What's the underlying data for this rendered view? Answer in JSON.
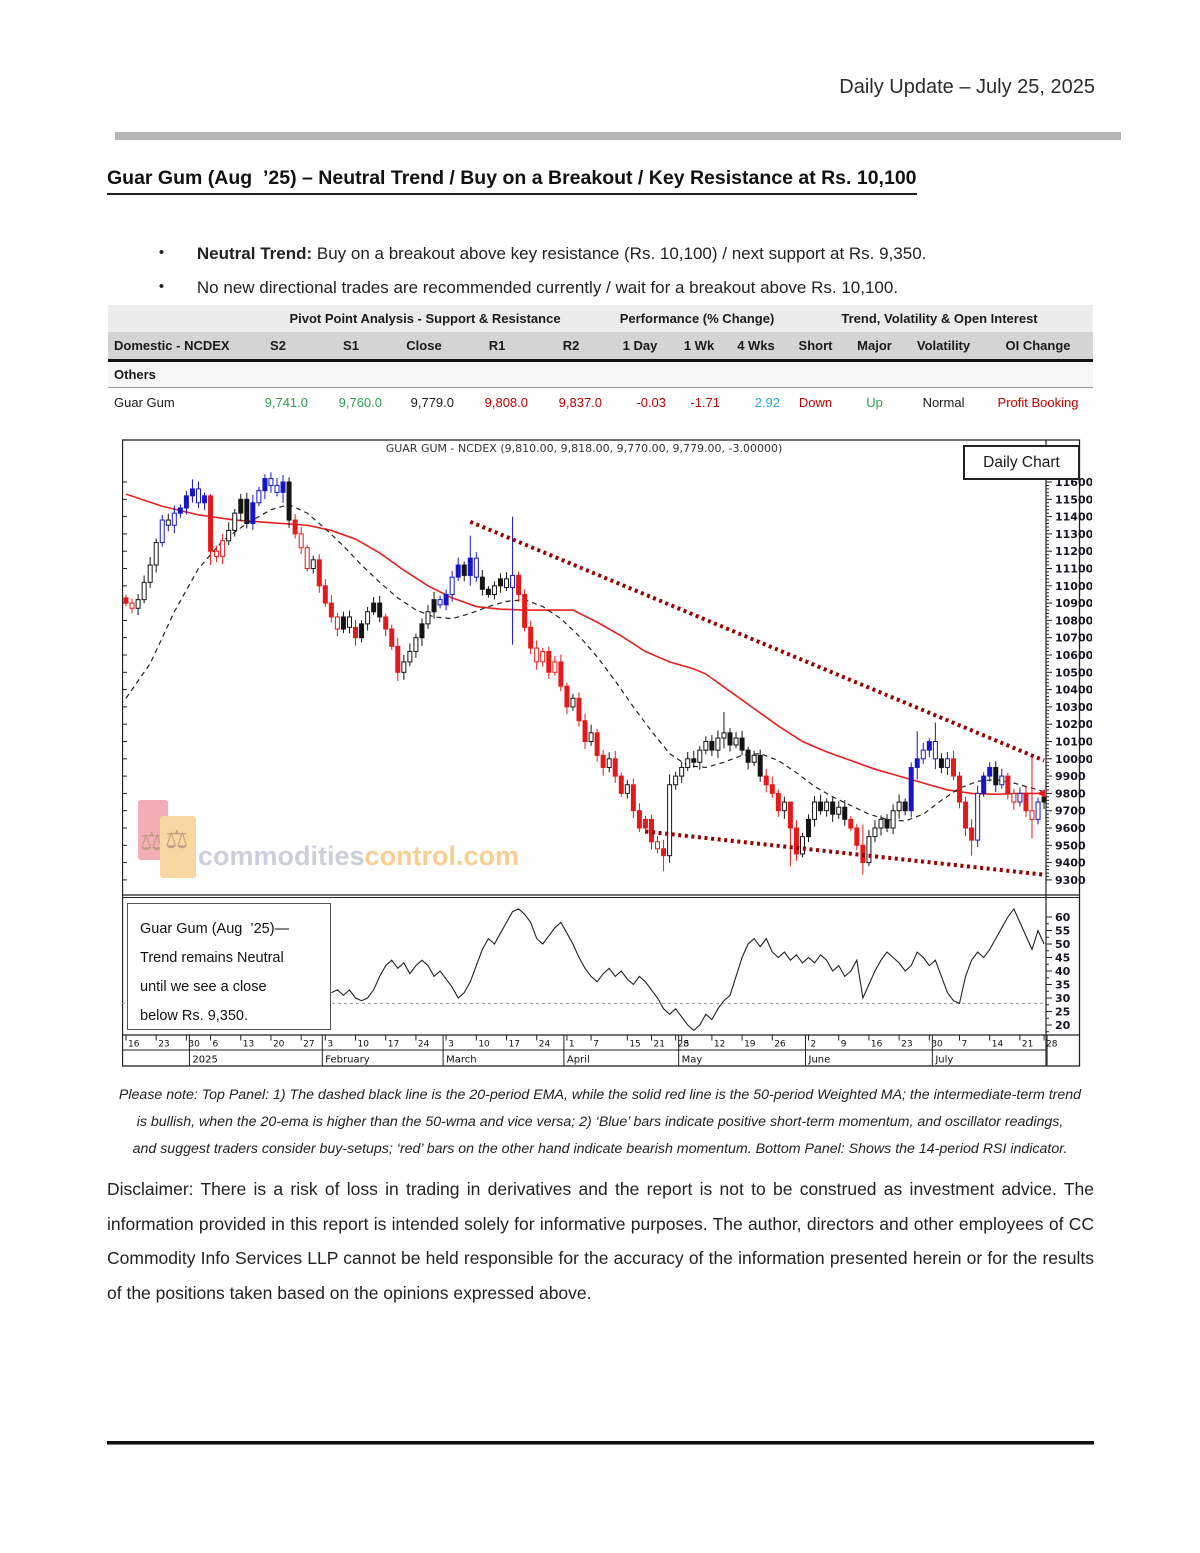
{
  "header": {
    "date_label": "Daily Update – July 25, 2025"
  },
  "heading": "Guar Gum (Aug  ’25) – Neutral Trend / Buy on a Breakout / Key Resistance at Rs. 10,100",
  "bullets": [
    {
      "marker": "•",
      "bold": "Neutral Trend:",
      "rest": " Buy on a breakout above key resistance (Rs. 10,100) / next support at Rs. 9,350."
    },
    {
      "marker": "•",
      "bold": "",
      "rest": "No new directional trades are recommended currently / wait for a breakout above Rs. 10,100."
    }
  ],
  "table": {
    "group_headers": [
      "",
      "Pivot Point Analysis - Support & Resistance",
      "Performance (% Change)",
      "Trend, Volatility & Open Interest"
    ],
    "columns": [
      "Domestic - NCDEX",
      "S2",
      "S1",
      "Close",
      "R1",
      "R2",
      "1 Day",
      "1 Wk",
      "4 Wks",
      "Short",
      "Major",
      "Volatility",
      "OI Change"
    ],
    "section_label": "Others",
    "row": {
      "name": "Guar Gum",
      "values": [
        "9,741.0",
        "9,760.0",
        "9,779.0",
        "9,808.0",
        "9,837.0",
        "-0.03",
        "-1.71",
        "2.92",
        "Down",
        "Up",
        "Normal",
        "Profit Booking"
      ],
      "value_colors": [
        "green",
        "green",
        "black",
        "red",
        "red",
        "red",
        "red",
        "cyan",
        "red",
        "green",
        "black",
        "red"
      ]
    },
    "palette": {
      "green": "#2e9e50",
      "red": "#c00000",
      "cyan": "#2aa7df",
      "black": "#1a1a1a"
    }
  },
  "chart": {
    "corner_label": "Daily Chart",
    "annotation_lines": [
      "Guar Gum (Aug  ’25)—",
      "Trend remains Neutral",
      "until we see a close",
      "below Rs. 9,350."
    ],
    "watermark": {
      "gray": "commodities",
      "orange": "control.com",
      "scale_icon": "⚖"
    }
  },
  "chart_data": {
    "type": "candlestick",
    "title": "GUAR GUM - NCDEX (9,810.00, 9,818.00, 9,770.00, 9,779.00, -3.00000)",
    "ylabel_min": 9300,
    "ylabel_max": 11600,
    "ylabel_step": 100,
    "open0": 10930,
    "closes": [
      10900,
      10870,
      10920,
      11020,
      11120,
      11250,
      11380,
      11350,
      11420,
      11450,
      11520,
      11560,
      11480,
      11520,
      11200,
      11170,
      11260,
      11320,
      11420,
      11500,
      11360,
      11480,
      11550,
      11620,
      11580,
      11540,
      11600,
      11380,
      11300,
      11220,
      11100,
      11150,
      11000,
      10900,
      10820,
      10750,
      10820,
      10760,
      10700,
      10780,
      10850,
      10900,
      10820,
      10750,
      10650,
      10500,
      10560,
      10620,
      10700,
      10780,
      10850,
      10920,
      10890,
      10950,
      11050,
      11120,
      11060,
      11160,
      11050,
      10980,
      10950,
      11000,
      11040,
      10990,
      11060,
      10950,
      10760,
      10640,
      10560,
      10620,
      10500,
      10560,
      10420,
      10300,
      10350,
      10220,
      10100,
      10150,
      10020,
      9950,
      10000,
      9900,
      9800,
      9850,
      9700,
      9600,
      9650,
      9520,
      9480,
      9440,
      9850,
      9900,
      9950,
      10000,
      9980,
      10050,
      10100,
      10050,
      10120,
      10150,
      10080,
      10120,
      10050,
      9980,
      10020,
      9900,
      9850,
      9800,
      9700,
      9750,
      9600,
      9450,
      9550,
      9650,
      9750,
      9700,
      9750,
      9680,
      9720,
      9650,
      9600,
      9500,
      9400,
      9550,
      9600,
      9650,
      9600,
      9700,
      9750,
      9700,
      9950,
      10000,
      10050,
      10100,
      10000,
      9950,
      10000,
      9900,
      9750,
      9600,
      9530,
      9800,
      9900,
      9950,
      9850,
      9900,
      9800,
      9750,
      9800,
      9700,
      9650,
      9750,
      9779
    ],
    "colors": "RrWWWWbWbBBBbBRrrWWKKBbBbbBKRrrWRRRrKWRKWKKRRRWWWKWKbBbBKBbKKWKWbRRRrrRrRRWRRWRRWRRWRRRRrRWWWWKWWKWWKWKKWKRRRWRRWKWKWKWKRRRWWWKWWKBBbBbKbRRRRbBBKbRrbRrbK",
    "wick_overrides": {
      "11": [
        11615,
        11480
      ],
      "14": [
        11530,
        11120
      ],
      "23": [
        11645,
        11500
      ],
      "26": [
        11640,
        11480
      ],
      "45": [
        10700,
        10450
      ],
      "57": [
        11290,
        11000
      ],
      "64": [
        11400,
        10660
      ],
      "89": [
        9530,
        9350
      ],
      "90": [
        9910,
        9400
      ],
      "99": [
        10270,
        10060
      ],
      "110": [
        9640,
        9380
      ],
      "122": [
        9620,
        9330
      ],
      "131": [
        10160,
        9880
      ],
      "134": [
        10210,
        9940
      ],
      "140": [
        9650,
        9440
      ],
      "150": [
        10010,
        9540
      ]
    },
    "months": [
      {
        "label": "",
        "end": 10,
        "ticks": [
          [
            0,
            "16"
          ],
          [
            5,
            "23"
          ],
          [
            10,
            "30"
          ]
        ]
      },
      {
        "label": "2025",
        "end": 32,
        "ticks": [
          [
            14,
            "6"
          ],
          [
            19,
            "13"
          ],
          [
            24,
            "20"
          ],
          [
            29,
            "27"
          ]
        ]
      },
      {
        "label": "February",
        "end": 52,
        "ticks": [
          [
            33,
            "3"
          ],
          [
            38,
            "10"
          ],
          [
            43,
            "17"
          ],
          [
            48,
            "24"
          ]
        ]
      },
      {
        "label": "March",
        "end": 72,
        "ticks": [
          [
            53,
            "3"
          ],
          [
            58,
            "10"
          ],
          [
            63,
            "17"
          ],
          [
            68,
            "24"
          ]
        ]
      },
      {
        "label": "April",
        "end": 91,
        "ticks": [
          [
            73,
            "1"
          ],
          [
            77,
            "7"
          ],
          [
            83,
            "15"
          ],
          [
            87,
            "21"
          ],
          [
            91,
            "28"
          ]
        ]
      },
      {
        "label": "May",
        "end": 112,
        "ticks": [
          [
            92,
            "5"
          ],
          [
            97,
            "12"
          ],
          [
            102,
            "19"
          ],
          [
            107,
            "26"
          ]
        ]
      },
      {
        "label": "June",
        "end": 133,
        "ticks": [
          [
            113,
            "2"
          ],
          [
            118,
            "9"
          ],
          [
            123,
            "16"
          ],
          [
            128,
            "23"
          ],
          [
            133,
            "30"
          ]
        ]
      },
      {
        "label": "July",
        "end": 152,
        "ticks": [
          [
            138,
            "7"
          ],
          [
            143,
            "14"
          ],
          [
            148,
            "21"
          ],
          [
            152,
            "28"
          ]
        ]
      }
    ],
    "ema20_points": [
      [
        0,
        10350
      ],
      [
        4,
        10550
      ],
      [
        8,
        10850
      ],
      [
        12,
        11100
      ],
      [
        16,
        11260
      ],
      [
        20,
        11360
      ],
      [
        24,
        11440
      ],
      [
        27,
        11470
      ],
      [
        30,
        11420
      ],
      [
        33,
        11330
      ],
      [
        36,
        11230
      ],
      [
        39,
        11120
      ],
      [
        42,
        11020
      ],
      [
        45,
        10930
      ],
      [
        48,
        10860
      ],
      [
        51,
        10820
      ],
      [
        54,
        10810
      ],
      [
        57,
        10840
      ],
      [
        60,
        10880
      ],
      [
        63,
        10910
      ],
      [
        66,
        10920
      ],
      [
        69,
        10880
      ],
      [
        72,
        10810
      ],
      [
        75,
        10710
      ],
      [
        78,
        10590
      ],
      [
        81,
        10450
      ],
      [
        84,
        10300
      ],
      [
        87,
        10160
      ],
      [
        90,
        10030
      ],
      [
        93,
        9960
      ],
      [
        96,
        9950
      ],
      [
        99,
        9980
      ],
      [
        102,
        10020
      ],
      [
        105,
        10030
      ],
      [
        108,
        9990
      ],
      [
        111,
        9920
      ],
      [
        114,
        9840
      ],
      [
        117,
        9780
      ],
      [
        120,
        9730
      ],
      [
        123,
        9680
      ],
      [
        126,
        9650
      ],
      [
        129,
        9640
      ],
      [
        132,
        9680
      ],
      [
        135,
        9760
      ],
      [
        138,
        9830
      ],
      [
        141,
        9870
      ],
      [
        144,
        9880
      ],
      [
        147,
        9860
      ],
      [
        150,
        9830
      ],
      [
        152,
        9810
      ]
    ],
    "wma50_points": [
      [
        0,
        11530
      ],
      [
        6,
        11460
      ],
      [
        12,
        11410
      ],
      [
        18,
        11380
      ],
      [
        24,
        11365
      ],
      [
        30,
        11350
      ],
      [
        34,
        11320
      ],
      [
        38,
        11270
      ],
      [
        42,
        11190
      ],
      [
        46,
        11090
      ],
      [
        50,
        11000
      ],
      [
        54,
        10930
      ],
      [
        58,
        10880
      ],
      [
        62,
        10865
      ],
      [
        66,
        10860
      ],
      [
        70,
        10860
      ],
      [
        74,
        10860
      ],
      [
        78,
        10790
      ],
      [
        82,
        10710
      ],
      [
        86,
        10620
      ],
      [
        90,
        10560
      ],
      [
        94,
        10520
      ],
      [
        96,
        10490
      ],
      [
        100,
        10390
      ],
      [
        104,
        10290
      ],
      [
        108,
        10190
      ],
      [
        112,
        10100
      ],
      [
        116,
        10040
      ],
      [
        120,
        9990
      ],
      [
        124,
        9940
      ],
      [
        128,
        9900
      ],
      [
        132,
        9860
      ],
      [
        136,
        9820
      ],
      [
        140,
        9800
      ],
      [
        144,
        9795
      ],
      [
        148,
        9800
      ],
      [
        152,
        9800
      ]
    ],
    "trendlines": {
      "resistance": [
        [
          57,
          11370
        ],
        [
          152,
          9990
        ]
      ],
      "support": [
        [
          86,
          9580
        ],
        [
          152,
          9330
        ]
      ]
    },
    "last_marker_price": 9800,
    "rsi": {
      "labels": [
        60,
        55,
        50,
        45,
        40,
        35,
        30,
        25,
        20
      ],
      "dashed_level": 28,
      "points": [
        [
          34,
          32
        ],
        [
          35,
          33
        ],
        [
          36,
          31
        ],
        [
          37,
          33
        ],
        [
          38,
          30
        ],
        [
          39,
          29
        ],
        [
          40,
          30
        ],
        [
          41,
          33
        ],
        [
          42,
          38
        ],
        [
          43,
          42
        ],
        [
          44,
          44
        ],
        [
          45,
          41
        ],
        [
          46,
          43
        ],
        [
          47,
          39
        ],
        [
          48,
          42
        ],
        [
          49,
          44
        ],
        [
          50,
          42
        ],
        [
          51,
          38
        ],
        [
          52,
          40
        ],
        [
          53,
          37
        ],
        [
          54,
          34
        ],
        [
          55,
          30
        ],
        [
          56,
          32
        ],
        [
          57,
          36
        ],
        [
          58,
          42
        ],
        [
          59,
          48
        ],
        [
          60,
          52
        ],
        [
          61,
          50
        ],
        [
          62,
          54
        ],
        [
          63,
          58
        ],
        [
          64,
          62
        ],
        [
          65,
          63
        ],
        [
          66,
          61
        ],
        [
          67,
          58
        ],
        [
          68,
          52
        ],
        [
          69,
          50
        ],
        [
          70,
          53
        ],
        [
          71,
          56
        ],
        [
          72,
          58
        ],
        [
          73,
          54
        ],
        [
          74,
          50
        ],
        [
          75,
          45
        ],
        [
          76,
          41
        ],
        [
          77,
          38
        ],
        [
          78,
          36
        ],
        [
          79,
          39
        ],
        [
          80,
          41
        ],
        [
          81,
          38
        ],
        [
          82,
          40
        ],
        [
          83,
          37
        ],
        [
          84,
          35
        ],
        [
          85,
          38
        ],
        [
          86,
          36
        ],
        [
          87,
          33
        ],
        [
          88,
          30
        ],
        [
          89,
          26
        ],
        [
          90,
          24
        ],
        [
          91,
          26
        ],
        [
          92,
          23
        ],
        [
          93,
          20
        ],
        [
          94,
          18
        ],
        [
          95,
          20
        ],
        [
          96,
          24
        ],
        [
          97,
          22
        ],
        [
          98,
          26
        ],
        [
          99,
          29
        ],
        [
          100,
          31
        ],
        [
          101,
          38
        ],
        [
          102,
          45
        ],
        [
          103,
          50
        ],
        [
          104,
          52
        ],
        [
          105,
          49
        ],
        [
          106,
          52
        ],
        [
          107,
          47
        ],
        [
          108,
          45
        ],
        [
          109,
          47
        ],
        [
          110,
          44
        ],
        [
          111,
          46
        ],
        [
          112,
          43
        ],
        [
          113,
          45
        ],
        [
          114,
          43
        ],
        [
          115,
          46
        ],
        [
          116,
          44
        ],
        [
          117,
          40
        ],
        [
          118,
          42
        ],
        [
          119,
          38
        ],
        [
          120,
          40
        ],
        [
          121,
          44
        ],
        [
          122,
          30
        ],
        [
          123,
          35
        ],
        [
          124,
          40
        ],
        [
          125,
          44
        ],
        [
          126,
          47
        ],
        [
          127,
          45
        ],
        [
          128,
          43
        ],
        [
          129,
          40
        ],
        [
          130,
          42
        ],
        [
          131,
          47
        ],
        [
          132,
          45
        ],
        [
          133,
          42
        ],
        [
          134,
          44
        ],
        [
          135,
          38
        ],
        [
          136,
          32
        ],
        [
          137,
          29
        ],
        [
          138,
          28
        ],
        [
          139,
          38
        ],
        [
          140,
          44
        ],
        [
          141,
          47
        ],
        [
          142,
          45
        ],
        [
          143,
          48
        ],
        [
          144,
          52
        ],
        [
          145,
          56
        ],
        [
          146,
          60
        ],
        [
          147,
          63
        ],
        [
          148,
          58
        ],
        [
          149,
          53
        ],
        [
          150,
          48
        ],
        [
          151,
          55
        ],
        [
          152,
          50
        ]
      ]
    },
    "candle_palette": {
      "blue": "#1616c8",
      "red": "#e41a1a",
      "black": "#141414",
      "wma": "#e62020",
      "trend": "#990000"
    }
  },
  "note_lines": [
    "Please note: Top Panel: 1) The dashed black line is the 20-period EMA, while the solid red line is the 50-period Weighted MA; the intermediate-term trend",
    "is bullish, when the 20-ema is higher than the 50-wma and vice versa; 2)  ‘Blue’  bars indicate positive short-term momentum, and oscillator readings,",
    "and suggest traders consider buy-setups;  ‘red’  bars on the other hand indicate bearish momentum. Bottom Panel: Shows the 14-period RSI indicator."
  ],
  "disclaimer": "Disclaimer: There is a risk of loss in trading in derivatives and the report is not to be construed as investment advice. The information provided in this report is intended solely for informative purposes. The author, directors and other employees of CC Commodity Info Services LLP cannot be held responsible for the accuracy of the information presented herein or for the results of the positions taken based on the opinions expressed above."
}
